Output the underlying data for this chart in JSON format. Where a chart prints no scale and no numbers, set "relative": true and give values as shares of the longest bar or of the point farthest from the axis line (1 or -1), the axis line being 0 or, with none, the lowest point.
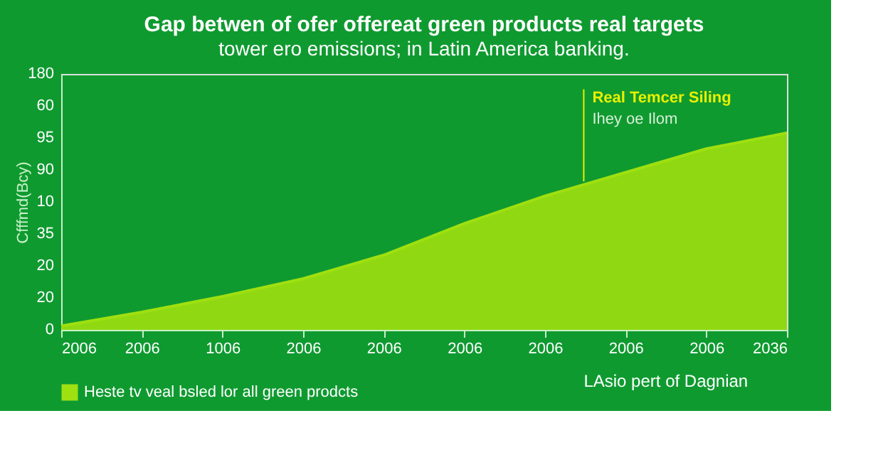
{
  "chart_data": {
    "type": "area",
    "title": "Gap betwen of ofer offereat green products real targets",
    "subtitle": "tower ero emissions; in Latin America banking.",
    "ylabel": "Cfffmd(Bcy)",
    "categories": [
      "2006",
      "2006",
      "1006",
      "2006",
      "2006",
      "2006",
      "2006",
      "2006",
      "2006",
      "2036"
    ],
    "relative": true,
    "series": [
      {
        "name": "Heste tv veal bsled lor all green prodcts",
        "color": "#9fe010",
        "values": [
          0.02,
          0.09,
          0.17,
          0.26,
          0.38,
          0.54,
          0.68,
          0.8,
          0.92,
          1.0
        ]
      }
    ],
    "annotations": [
      "Real Temcer Siling",
      "Ihey oe Ilom",
      "LAsio pert of Dagnian",
      "0",
      "20",
      "20",
      "35",
      "10",
      "90",
      "95",
      "60",
      "180"
    ],
    "legend": "bottom",
    "grid": false
  }
}
